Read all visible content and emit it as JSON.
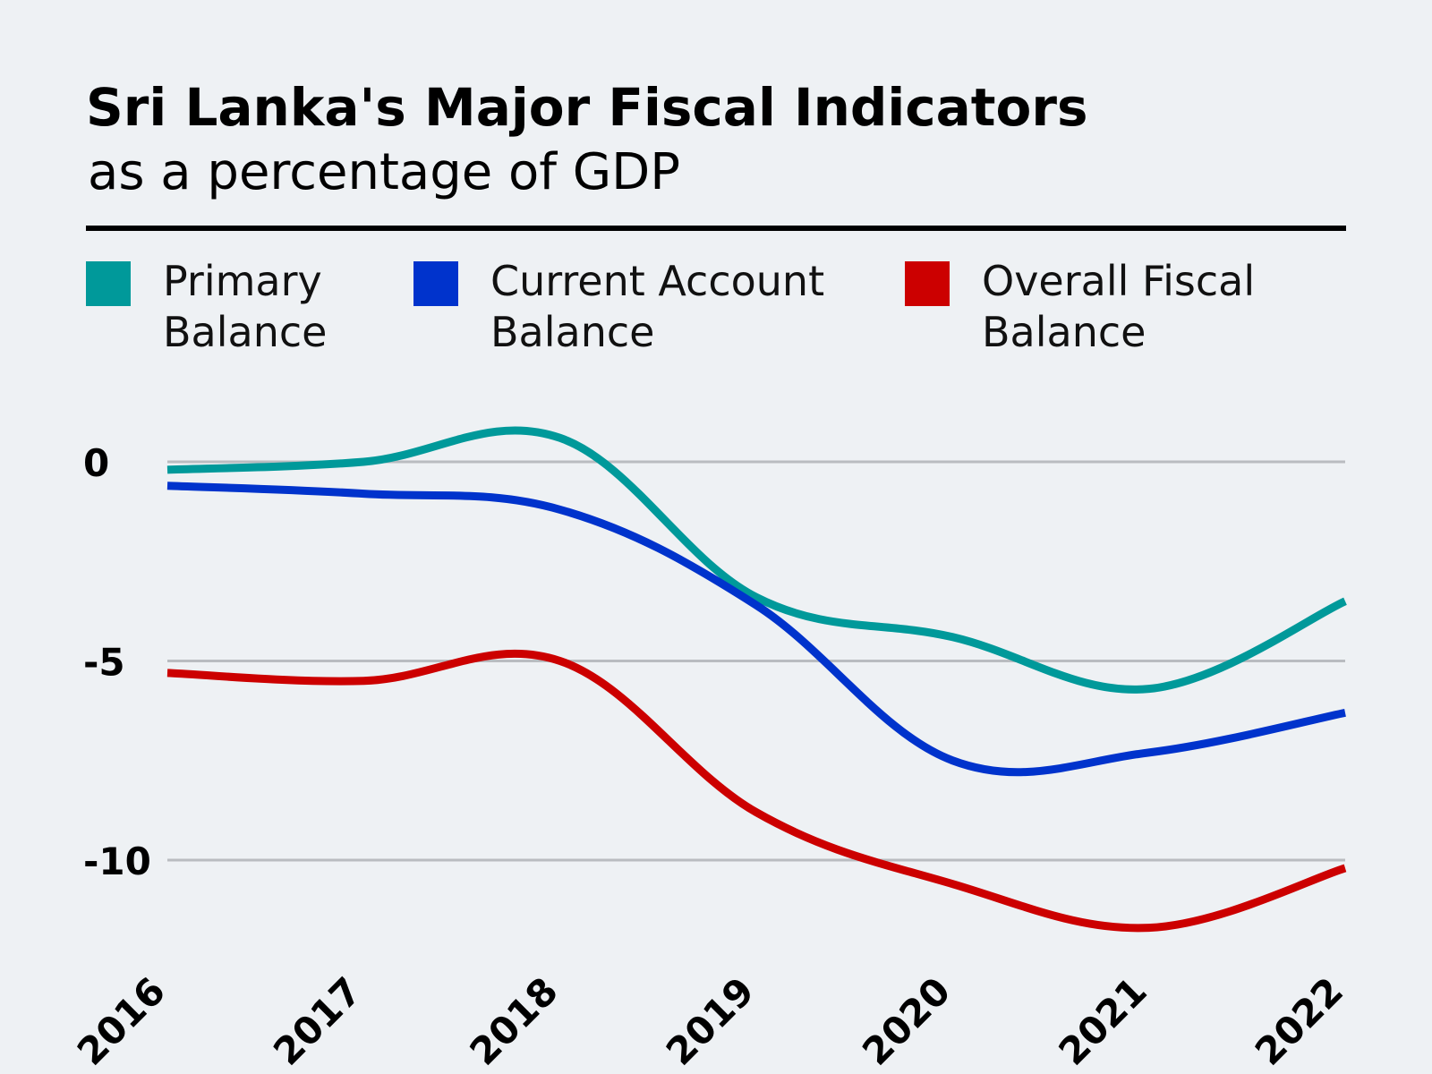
{
  "colors": {
    "primary": "#00999a",
    "current": "#0033cc",
    "overall": "#cc0000",
    "grid": "#b9bcc0"
  },
  "legend": [
    {
      "line1": "Primary",
      "line2": "Balance"
    },
    {
      "line1": "Current Account",
      "line2": "Balance"
    },
    {
      "line1": "Overall Fiscal",
      "line2": "Balance"
    }
  ],
  "chart_data": {
    "type": "line",
    "title": "Sri Lanka's Major Fiscal Indicators",
    "subtitle": "as a percentage of GDP",
    "x": [
      "2016",
      "2017",
      "2018",
      "2019",
      "2020",
      "2021",
      "2022"
    ],
    "yticks": [
      "0",
      "-5",
      "-10"
    ],
    "ylim": [
      -12.5,
      1
    ],
    "grid": true,
    "legend_position": "top",
    "series": [
      {
        "name": "Primary Balance",
        "values": [
          -0.2,
          0.0,
          0.6,
          -3.4,
          -4.4,
          -5.7,
          -3.5
        ]
      },
      {
        "name": "Current Account Balance",
        "values": [
          -0.6,
          -0.8,
          -1.2,
          -3.6,
          -7.5,
          -7.3,
          -6.3
        ]
      },
      {
        "name": "Overall Fiscal Balance",
        "values": [
          -5.3,
          -5.5,
          -5.0,
          -8.8,
          -10.6,
          -11.7,
          -10.2
        ]
      }
    ]
  }
}
